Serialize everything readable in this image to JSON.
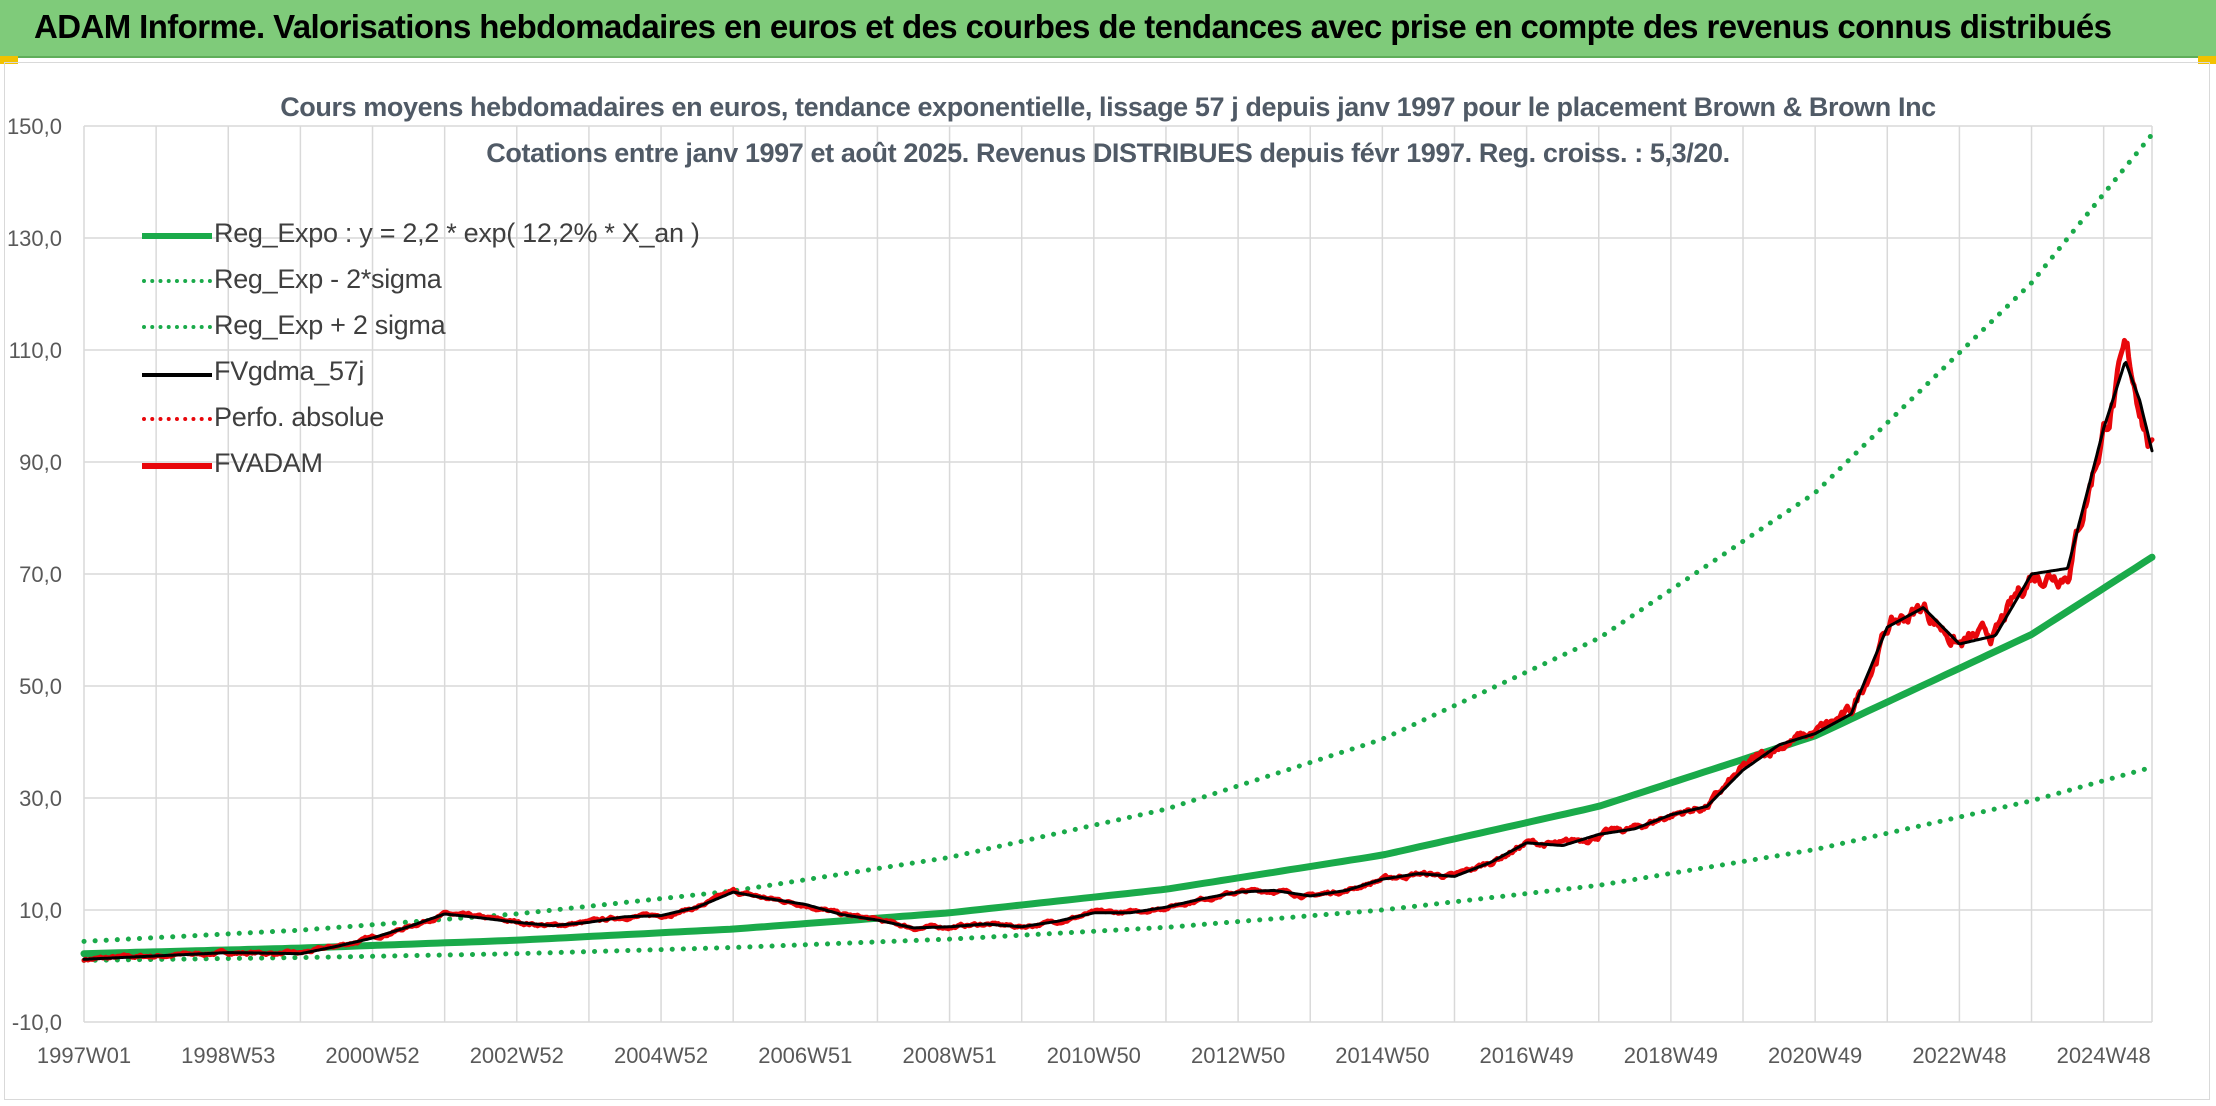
{
  "banner": {
    "text": "ADAM Informe. Valorisations hebdomadaires en euros et des courbes de tendances avec prise en compte des revenus connus distribués"
  },
  "colors": {
    "banner_bg": "#7fcb7a",
    "reg_green": "#1aaa4a",
    "price_red": "#e8070b",
    "smooth_black": "#000000",
    "grid": "#d9d9d9"
  },
  "chart_data": {
    "type": "line",
    "title": "Cours moyens hebdomadaires en euros, tendance exponentielle, lissage 57 j depuis janv 1997 pour le placement Brown & Brown Inc",
    "subtitle": "Cotations entre janv 1997 et août 2025. Revenus DISTRIBUES depuis févr 1997. Reg. croiss. : 5,3/20.",
    "xlabel": "",
    "ylabel": "",
    "x_range": [
      1997.0,
      2025.67
    ],
    "ylim": [
      -10,
      150
    ],
    "y_ticks": [
      "-10,0",
      "10,0",
      "30,0",
      "50,0",
      "70,0",
      "90,0",
      "110,0",
      "130,0",
      "150,0"
    ],
    "y_tick_values": [
      -10,
      10,
      30,
      50,
      70,
      90,
      110,
      130,
      150
    ],
    "x_ticks": [
      {
        "label": "1997W01",
        "x": 1997.0
      },
      {
        "label": "1998W53",
        "x": 1999.0
      },
      {
        "label": "2000W52",
        "x": 2001.0
      },
      {
        "label": "2002W52",
        "x": 2003.0
      },
      {
        "label": "2004W52",
        "x": 2005.0
      },
      {
        "label": "2006W51",
        "x": 2007.0
      },
      {
        "label": "2008W51",
        "x": 2009.0
      },
      {
        "label": "2010W50",
        "x": 2011.0
      },
      {
        "label": "2012W50",
        "x": 2013.0
      },
      {
        "label": "2014W50",
        "x": 2015.0
      },
      {
        "label": "2016W49",
        "x": 2017.0
      },
      {
        "label": "2018W49",
        "x": 2019.0
      },
      {
        "label": "2020W49",
        "x": 2021.0
      },
      {
        "label": "2022W48",
        "x": 2023.0
      },
      {
        "label": "2024W48",
        "x": 2025.0
      }
    ],
    "grid": true,
    "legend_position": "top-left",
    "series": [
      {
        "name": "Reg_Expo : y = 2,2 * exp( 12,2% *  X_an )",
        "style": "solid-thick",
        "color": "#1aaa4a",
        "x": [
          1997.0,
          2000.0,
          2003.0,
          2006.0,
          2009.0,
          2012.0,
          2015.0,
          2018.0,
          2021.0,
          2024.0,
          2025.67
        ],
        "y": [
          2.2,
          3.2,
          4.6,
          6.6,
          9.5,
          13.7,
          19.8,
          28.5,
          41.1,
          59.2,
          73.0
        ]
      },
      {
        "name": "Reg_Exp - 2*sigma",
        "style": "dotted",
        "color": "#1aaa4a",
        "x": [
          1997.0,
          2000.0,
          2003.0,
          2006.0,
          2009.0,
          2012.0,
          2015.0,
          2018.0,
          2021.0,
          2024.0,
          2025.67
        ],
        "y": [
          1.0,
          1.5,
          2.2,
          3.3,
          4.8,
          6.9,
          10.0,
          14.4,
          20.8,
          29.5,
          35.5
        ]
      },
      {
        "name": "Reg_Exp + 2 sigma",
        "style": "dotted",
        "color": "#1aaa4a",
        "x": [
          1997.0,
          2000.0,
          2003.0,
          2006.0,
          2009.0,
          2012.0,
          2015.0,
          2018.0,
          2021.0,
          2024.0,
          2025.67
        ],
        "y": [
          4.4,
          6.4,
          9.3,
          13.4,
          19.4,
          28.0,
          40.5,
          58.5,
          84.5,
          122.0,
          148.5
        ]
      },
      {
        "name": "FVgdma_57j",
        "style": "solid-thin",
        "color": "#000000",
        "x": [
          1997.0,
          1998.0,
          1999.0,
          2000.0,
          2000.5,
          2001.0,
          2001.5,
          2002.0,
          2002.5,
          2003.0,
          2003.5,
          2004.0,
          2004.5,
          2005.0,
          2005.5,
          2006.0,
          2006.5,
          2007.0,
          2007.5,
          2008.0,
          2008.5,
          2009.0,
          2009.5,
          2010.0,
          2010.5,
          2011.0,
          2011.5,
          2012.0,
          2012.5,
          2013.0,
          2013.5,
          2014.0,
          2014.5,
          2015.0,
          2015.5,
          2016.0,
          2016.5,
          2017.0,
          2017.5,
          2018.0,
          2018.5,
          2019.0,
          2019.5,
          2020.0,
          2020.5,
          2021.0,
          2021.5,
          2022.0,
          2022.5,
          2023.0,
          2023.5,
          2024.0,
          2024.5,
          2025.0,
          2025.3,
          2025.5,
          2025.67
        ],
        "y": [
          1.2,
          1.8,
          2.4,
          2.2,
          3.5,
          5.0,
          7.0,
          9.3,
          8.6,
          7.8,
          7.2,
          7.8,
          8.8,
          9.0,
          10.5,
          13.2,
          12.0,
          11.0,
          9.2,
          8.2,
          6.8,
          7.0,
          7.5,
          7.0,
          8.0,
          9.5,
          9.5,
          10.5,
          12.0,
          13.2,
          13.5,
          12.5,
          13.5,
          15.5,
          16.5,
          16.0,
          18.5,
          22.0,
          21.5,
          23.5,
          24.5,
          27.0,
          28.5,
          35.0,
          39.5,
          41.5,
          45.0,
          60.5,
          64.0,
          57.5,
          59.0,
          70.0,
          71.0,
          96.0,
          108.0,
          101.0,
          92.0
        ]
      },
      {
        "name": "Perfo. absolue",
        "style": "dotted",
        "color": "#e8070b",
        "x": [],
        "y": []
      },
      {
        "name": "FVADAM",
        "style": "solid-thick",
        "color": "#e8070b",
        "x": [
          1997.0,
          1998.0,
          1999.0,
          2000.0,
          2000.5,
          2001.0,
          2001.5,
          2002.0,
          2002.5,
          2003.0,
          2003.5,
          2004.0,
          2004.5,
          2005.0,
          2005.5,
          2006.0,
          2006.5,
          2007.0,
          2007.5,
          2008.0,
          2008.5,
          2009.0,
          2009.5,
          2010.0,
          2010.5,
          2011.0,
          2011.5,
          2012.0,
          2012.5,
          2013.0,
          2013.5,
          2014.0,
          2014.5,
          2015.0,
          2015.5,
          2016.0,
          2016.5,
          2017.0,
          2017.5,
          2018.0,
          2018.5,
          2019.0,
          2019.5,
          2020.0,
          2020.5,
          2021.0,
          2021.5,
          2022.0,
          2022.5,
          2023.0,
          2023.5,
          2024.0,
          2024.5,
          2025.0,
          2025.3,
          2025.5,
          2025.67
        ],
        "y": [
          1.2,
          1.8,
          2.4,
          2.2,
          3.5,
          5.0,
          7.0,
          9.3,
          8.6,
          7.8,
          7.2,
          7.8,
          8.8,
          9.0,
          10.5,
          13.2,
          12.0,
          11.0,
          9.2,
          8.2,
          6.8,
          7.0,
          7.5,
          7.0,
          8.0,
          9.5,
          9.5,
          10.5,
          12.0,
          13.2,
          13.5,
          12.5,
          13.5,
          15.5,
          16.5,
          16.0,
          18.5,
          22.0,
          21.5,
          23.5,
          24.5,
          27.0,
          28.5,
          35.0,
          39.5,
          41.5,
          45.0,
          60.5,
          64.0,
          57.5,
          59.0,
          70.0,
          71.0,
          96.0,
          108.0,
          101.0,
          92.0
        ]
      }
    ]
  }
}
